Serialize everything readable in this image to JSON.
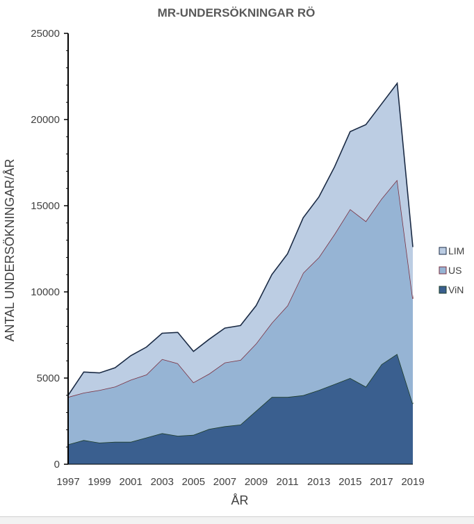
{
  "chart_data": {
    "type": "area",
    "stacked": true,
    "title": "MR-UNDERSÖKNINGAR RÖ",
    "xlabel": "ÅR",
    "ylabel": "ANTAL UNDERSÖKNINGAR/ÅR",
    "ylim": [
      0,
      25000
    ],
    "yticks": [
      0,
      5000,
      10000,
      15000,
      20000,
      25000
    ],
    "xlim": [
      1997,
      2019
    ],
    "xticks": [
      1997,
      1999,
      2001,
      2003,
      2005,
      2007,
      2009,
      2011,
      2013,
      2015,
      2017,
      2019
    ],
    "x": [
      1997,
      1998,
      1999,
      2000,
      2001,
      2002,
      2003,
      2004,
      2005,
      2006,
      2007,
      2008,
      2009,
      2010,
      2011,
      2012,
      2013,
      2014,
      2015,
      2016,
      2017,
      2018,
      2019
    ],
    "legend_position": "right",
    "grid": false,
    "series": [
      {
        "name": "ViN",
        "color": "#3a5f8f",
        "values": [
          1150,
          1400,
          1250,
          1300,
          1300,
          1550,
          1800,
          1650,
          1700,
          2050,
          2200,
          2300,
          3100,
          3900,
          3900,
          4000,
          4300,
          4650,
          5000,
          4500,
          5800,
          6400,
          3500
        ]
      },
      {
        "name": "US",
        "color": "#96b4d4",
        "values": [
          2750,
          2750,
          3050,
          3200,
          3600,
          3650,
          4300,
          4200,
          3050,
          3200,
          3700,
          3750,
          3900,
          4300,
          5300,
          7100,
          7700,
          8700,
          9800,
          9600,
          9600,
          10100,
          6100
        ]
      },
      {
        "name": "LIM",
        "color": "#bccde3",
        "values": [
          100,
          1200,
          1000,
          1100,
          1400,
          1600,
          1500,
          1800,
          1800,
          2000,
          2000,
          2000,
          2200,
          2800,
          3000,
          3200,
          3500,
          3900,
          4500,
          5600,
          5500,
          5600,
          3000
        ]
      }
    ]
  }
}
